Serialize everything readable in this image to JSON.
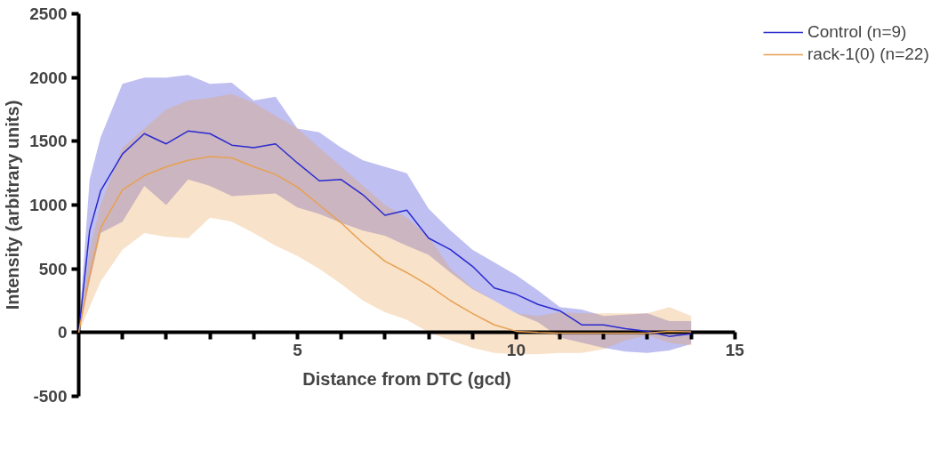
{
  "chart_data": {
    "type": "line",
    "xlabel": "Distance from DTC (gcd)",
    "ylabel": "Intensity (arbitrary units)",
    "xlim": [
      0,
      15
    ],
    "ylim": [
      -500,
      2500
    ],
    "xticks": [
      {
        "value": 1,
        "label": null
      },
      {
        "value": 2,
        "label": null
      },
      {
        "value": 3,
        "label": null
      },
      {
        "value": 4,
        "label": null
      },
      5,
      {
        "value": 6,
        "label": null
      },
      {
        "value": 7,
        "label": null
      },
      {
        "value": 8,
        "label": null
      },
      {
        "value": 9,
        "label": null
      },
      10,
      {
        "value": 11,
        "label": null
      },
      {
        "value": 12,
        "label": null
      },
      {
        "value": 13,
        "label": null
      },
      {
        "value": 14,
        "label": null
      },
      15
    ],
    "yticks": [
      -500,
      0,
      500,
      1000,
      1500,
      2000,
      2500
    ],
    "grid": false,
    "legend": "top right",
    "marker": "none",
    "line_style": "solid",
    "x": [
      0,
      0.25,
      0.5,
      1,
      1.5,
      2,
      2.5,
      3,
      3.5,
      4,
      4.5,
      5,
      5.5,
      6,
      6.5,
      7,
      7.5,
      8,
      8.5,
      9,
      9.5,
      10,
      10.5,
      11,
      11.5,
      12,
      12.5,
      13,
      13.5,
      14
    ],
    "series": [
      {
        "name": "Control (n=9)",
        "color": "#2a2ad0",
        "values": [
          0,
          800,
          1110,
          1400,
          1560,
          1480,
          1580,
          1560,
          1470,
          1450,
          1480,
          1330,
          1190,
          1200,
          1080,
          920,
          960,
          740,
          650,
          520,
          350,
          300,
          220,
          170,
          60,
          60,
          30,
          10,
          -30,
          -10
        ],
        "upper": [
          0,
          1200,
          1530,
          1950,
          2000,
          2000,
          2020,
          1950,
          1960,
          1820,
          1850,
          1600,
          1570,
          1450,
          1350,
          1300,
          1250,
          970,
          800,
          650,
          550,
          450,
          330,
          200,
          180,
          130,
          140,
          150,
          90,
          90
        ],
        "lower": [
          0,
          400,
          780,
          870,
          1150,
          1000,
          1200,
          1150,
          1070,
          1080,
          1090,
          980,
          930,
          860,
          800,
          760,
          680,
          610,
          470,
          340,
          250,
          150,
          80,
          -40,
          -80,
          -120,
          -150,
          -160,
          -140,
          -90
        ]
      },
      {
        "name": "rack-1(0) (n=22)",
        "color": "#e8a050",
        "values": [
          0,
          450,
          820,
          1120,
          1230,
          1300,
          1350,
          1380,
          1370,
          1300,
          1240,
          1140,
          1000,
          860,
          700,
          560,
          470,
          370,
          250,
          150,
          60,
          10,
          0,
          -5,
          -5,
          -5,
          -5,
          -5,
          10,
          5
        ],
        "upper": [
          0,
          650,
          1000,
          1450,
          1600,
          1750,
          1820,
          1840,
          1870,
          1800,
          1700,
          1600,
          1450,
          1300,
          1150,
          1000,
          900,
          750,
          500,
          350,
          250,
          150,
          130,
          160,
          150,
          150,
          150,
          150,
          200,
          130
        ],
        "lower": [
          0,
          200,
          400,
          650,
          780,
          750,
          740,
          900,
          870,
          780,
          680,
          600,
          500,
          380,
          250,
          160,
          100,
          0,
          -60,
          -120,
          -160,
          -170,
          -170,
          -160,
          -160,
          -130,
          -60,
          -20,
          -80,
          -100
        ]
      }
    ]
  }
}
